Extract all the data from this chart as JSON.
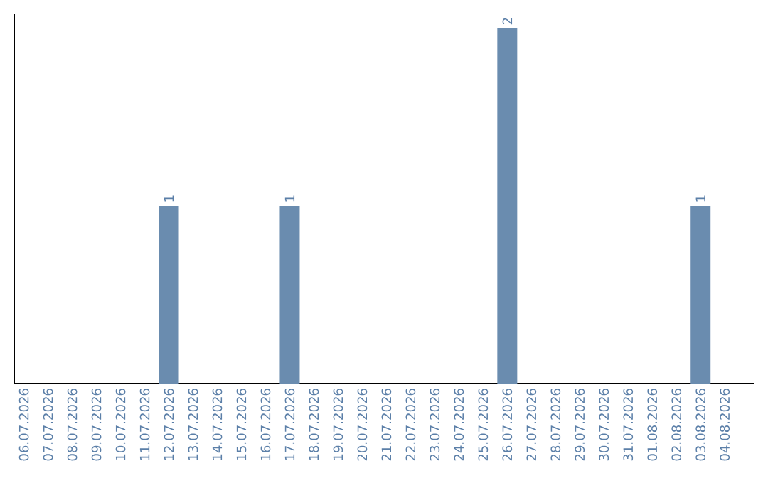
{
  "chart_data": {
    "type": "bar",
    "categories": [
      "06.07.2026",
      "07.07.2026",
      "08.07.2026",
      "09.07.2026",
      "10.07.2026",
      "11.07.2026",
      "12.07.2026",
      "13.07.2026",
      "14.07.2026",
      "15.07.2026",
      "16.07.2026",
      "17.07.2026",
      "18.07.2026",
      "19.07.2026",
      "20.07.2026",
      "21.07.2026",
      "22.07.2026",
      "23.07.2026",
      "24.07.2026",
      "25.07.2026",
      "26.07.2026",
      "27.07.2026",
      "28.07.2026",
      "29.07.2026",
      "30.07.2026",
      "31.07.2026",
      "01.08.2026",
      "02.08.2026",
      "03.08.2026",
      "04.08.2026"
    ],
    "values": [
      0,
      0,
      0,
      0,
      0,
      0,
      1,
      0,
      0,
      0,
      0,
      1,
      0,
      0,
      0,
      0,
      0,
      0,
      0,
      0,
      2,
      0,
      0,
      0,
      0,
      0,
      0,
      0,
      1,
      0
    ],
    "value_labels": [
      null,
      null,
      null,
      null,
      null,
      null,
      "1",
      null,
      null,
      null,
      null,
      "1",
      null,
      null,
      null,
      null,
      null,
      null,
      null,
      null,
      "2",
      null,
      null,
      null,
      null,
      null,
      null,
      null,
      "1",
      null
    ],
    "color": "#6a8caf",
    "tick_labels": "x"
  }
}
